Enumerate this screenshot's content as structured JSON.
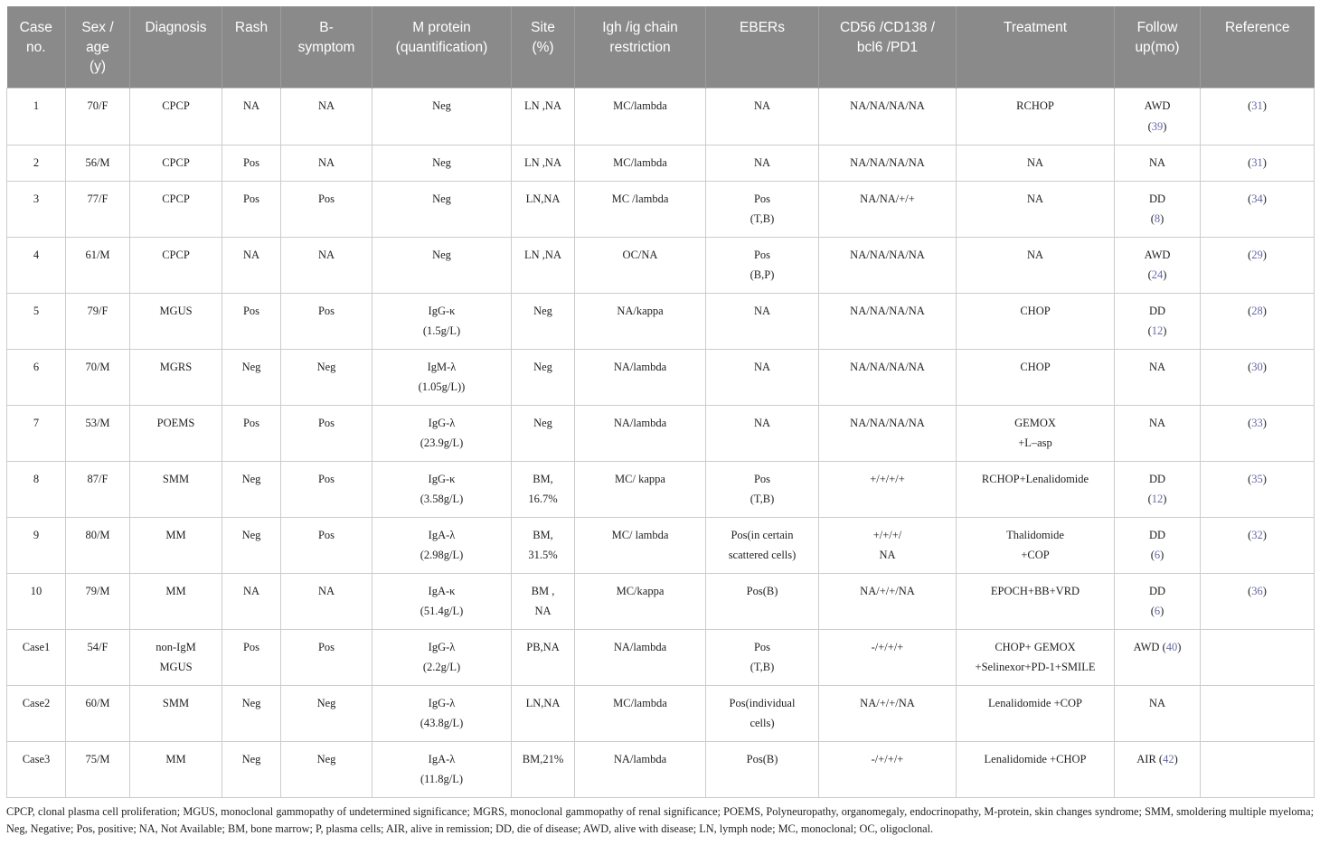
{
  "table": {
    "columns": [
      {
        "key": "case_no",
        "label": "Case\nno."
      },
      {
        "key": "sex_age",
        "label": "Sex /\nage\n(y)"
      },
      {
        "key": "diagnosis",
        "label": "Diagnosis"
      },
      {
        "key": "rash",
        "label": "Rash"
      },
      {
        "key": "b_symptom",
        "label": "B-\nsymptom"
      },
      {
        "key": "m_protein",
        "label": "M protein\n(quantification)"
      },
      {
        "key": "site",
        "label": "Site\n(%)"
      },
      {
        "key": "igh",
        "label": "Igh /ig chain\nrestriction"
      },
      {
        "key": "ebers",
        "label": "EBERs"
      },
      {
        "key": "cd56",
        "label": "CD56 /CD138 /\nbcl6 /PD1"
      },
      {
        "key": "treatment",
        "label": "Treatment"
      },
      {
        "key": "follow_up",
        "label": "Follow\nup(mo)"
      },
      {
        "key": "reference",
        "label": "Reference"
      }
    ],
    "rows": [
      {
        "case_no": "1",
        "sex_age": "70/F",
        "diagnosis": "CPCP",
        "rash": "NA",
        "b_symptom": "NA",
        "m_protein": "Neg",
        "site": "LN ,NA",
        "igh": "MC/lambda",
        "ebers": "NA",
        "cd56": "NA/NA/NA/NA",
        "treatment": "RCHOP",
        "follow_up": {
          "text": "AWD",
          "link": "(39)",
          "inline": false
        },
        "reference": {
          "text": "",
          "link": "(31)",
          "inline": true
        }
      },
      {
        "case_no": "2",
        "sex_age": "56/M",
        "diagnosis": "CPCP",
        "rash": "Pos",
        "b_symptom": "NA",
        "m_protein": "Neg",
        "site": "LN ,NA",
        "igh": "MC/lambda",
        "ebers": "NA",
        "cd56": "NA/NA/NA/NA",
        "treatment": "NA",
        "follow_up": "NA",
        "reference": {
          "text": "",
          "link": "(31)",
          "inline": true
        }
      },
      {
        "case_no": "3",
        "sex_age": "77/F",
        "diagnosis": "CPCP",
        "rash": "Pos",
        "b_symptom": "Pos",
        "m_protein": "Neg",
        "site": "LN,NA",
        "igh": "MC /lambda",
        "ebers": "Pos\n(T,B)",
        "cd56": "NA/NA/+/+",
        "treatment": "NA",
        "follow_up": {
          "text": "DD",
          "link": "(8)",
          "inline": false
        },
        "reference": {
          "text": "",
          "link": "(34)",
          "inline": true
        }
      },
      {
        "case_no": "4",
        "sex_age": "61/M",
        "diagnosis": "CPCP",
        "rash": "NA",
        "b_symptom": "NA",
        "m_protein": "Neg",
        "site": "LN ,NA",
        "igh": "OC/NA",
        "ebers": "Pos\n(B,P)",
        "cd56": "NA/NA/NA/NA",
        "treatment": "NA",
        "follow_up": {
          "text": "AWD",
          "link": "(24)",
          "inline": false
        },
        "reference": {
          "text": "",
          "link": "(29)",
          "inline": true
        }
      },
      {
        "case_no": "5",
        "sex_age": "79/F",
        "diagnosis": "MGUS",
        "rash": "Pos",
        "b_symptom": "Pos",
        "m_protein": "IgG-κ\n(1.5g/L)",
        "site": "Neg",
        "igh": "NA/kappa",
        "ebers": "NA",
        "cd56": "NA/NA/NA/NA",
        "treatment": "CHOP",
        "follow_up": {
          "text": "DD",
          "link": "(12)",
          "inline": false
        },
        "reference": {
          "text": "",
          "link": "(28)",
          "inline": true
        }
      },
      {
        "case_no": "6",
        "sex_age": "70/M",
        "diagnosis": "MGRS",
        "rash": "Neg",
        "b_symptom": "Neg",
        "m_protein": "IgM-λ\n(1.05g/L))",
        "site": "Neg",
        "igh": "NA/lambda",
        "ebers": "NA",
        "cd56": "NA/NA/NA/NA",
        "treatment": "CHOP",
        "follow_up": "NA",
        "reference": {
          "text": "",
          "link": "(30)",
          "inline": true
        }
      },
      {
        "case_no": "7",
        "sex_age": "53/M",
        "diagnosis": "POEMS",
        "rash": "Pos",
        "b_symptom": "Pos",
        "m_protein": "IgG-λ\n(23.9g/L)",
        "site": "Neg",
        "igh": "NA/lambda",
        "ebers": "NA",
        "cd56": "NA/NA/NA/NA",
        "treatment": "GEMOX\n+L–asp",
        "follow_up": "NA",
        "reference": {
          "text": "",
          "link": "(33)",
          "inline": true
        }
      },
      {
        "case_no": "8",
        "sex_age": "87/F",
        "diagnosis": "SMM",
        "rash": "Neg",
        "b_symptom": "Pos",
        "m_protein": "IgG-κ\n(3.58g/L)",
        "site": "BM,\n16.7%",
        "igh": "MC/ kappa",
        "ebers": "Pos\n(T,B)",
        "cd56": "+/+/+/+",
        "treatment": "RCHOP+Lenalidomide",
        "follow_up": {
          "text": "DD",
          "link": "(12)",
          "inline": false
        },
        "reference": {
          "text": "",
          "link": "(35)",
          "inline": true
        }
      },
      {
        "case_no": "9",
        "sex_age": "80/M",
        "diagnosis": "MM",
        "rash": "Neg",
        "b_symptom": "Pos",
        "m_protein": "IgA-λ\n(2.98g/L)",
        "site": "BM,\n31.5%",
        "igh": "MC/ lambda",
        "ebers": "Pos(in certain\nscattered cells)",
        "cd56": "+/+/+/\nNA",
        "treatment": "Thalidomide\n+COP",
        "follow_up": {
          "text": "DD",
          "link": "(6)",
          "inline": false
        },
        "reference": {
          "text": "",
          "link": "(32)",
          "inline": true
        }
      },
      {
        "case_no": "10",
        "sex_age": "79/M",
        "diagnosis": "MM",
        "rash": "NA",
        "b_symptom": "NA",
        "m_protein": "IgA-κ\n(51.4g/L)",
        "site": "BM ,\nNA",
        "igh": "MC/kappa",
        "ebers": "Pos(B)",
        "cd56": "NA/+/+/NA",
        "treatment": "EPOCH+BB+VRD",
        "follow_up": {
          "text": "DD",
          "link": "(6)",
          "inline": false
        },
        "reference": {
          "text": "",
          "link": "(36)",
          "inline": true
        }
      },
      {
        "case_no": "Case1",
        "sex_age": "54/F",
        "diagnosis": "non-IgM\nMGUS",
        "rash": "Pos",
        "b_symptom": "Pos",
        "m_protein": "IgG-λ\n(2.2g/L)",
        "site": "PB,NA",
        "igh": "NA/lambda",
        "ebers": "Pos\n(T,B)",
        "cd56": "-/+/+/+",
        "treatment": "CHOP+ GEMOX\n+Selinexor+PD-1+SMILE",
        "follow_up": {
          "text": "AWD",
          "link": "(40)",
          "inline": true
        },
        "reference": ""
      },
      {
        "case_no": "Case2",
        "sex_age": "60/M",
        "diagnosis": "SMM",
        "rash": "Neg",
        "b_symptom": "Neg",
        "m_protein": "IgG-λ\n(43.8g/L)",
        "site": "LN,NA",
        "igh": "MC/lambda",
        "ebers": "Pos(individual\ncells)",
        "cd56": "NA/+/+/NA",
        "treatment": "Lenalidomide +COP",
        "follow_up": "NA",
        "reference": ""
      },
      {
        "case_no": "Case3",
        "sex_age": "75/M",
        "diagnosis": "MM",
        "rash": "Neg",
        "b_symptom": "Neg",
        "m_protein": "IgA-λ\n(11.8g/L)",
        "site": "BM,21%",
        "igh": "NA/lambda",
        "ebers": "Pos(B)",
        "cd56": "-/+/+/+",
        "treatment": "Lenalidomide +CHOP",
        "follow_up": {
          "text": "AIR",
          "link": "(42)",
          "inline": true
        },
        "reference": ""
      }
    ]
  },
  "footnote": "CPCP, clonal plasma cell proliferation; MGUS, monoclonal gammopathy of undetermined significance; MGRS, monoclonal gammopathy of renal significance; POEMS, Polyneuropathy, organomegaly, endocrinopathy, M-protein, skin changes syndrome; SMM, smoldering multiple myeloma; Neg, Negative; Pos, positive; NA, Not Available; BM, bone marrow; P, plasma cells; AIR, alive in remission; DD, die of disease; AWD, alive with disease; LN, lymph node; MC, monoclonal; OC, oligoclonal.",
  "colors": {
    "header_bg": "#8a8a8a",
    "header_text": "#ffffff",
    "body_text": "#222222",
    "border": "#cccccc",
    "link": "#6467a8"
  }
}
